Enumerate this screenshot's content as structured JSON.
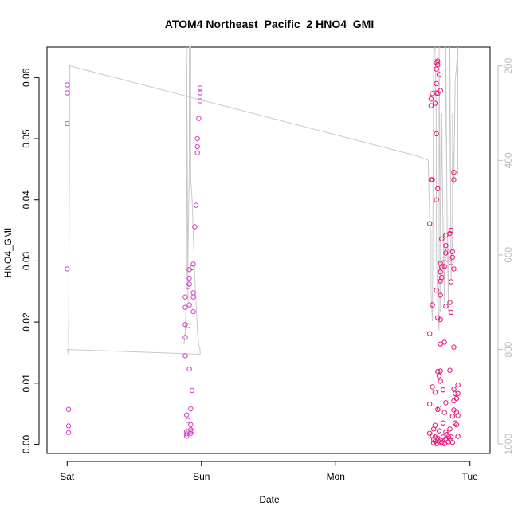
{
  "chart_data": {
    "type": "scatter",
    "title": "ATOM4 Northeast_Pacific_2 HNO4_GMI",
    "xlabel": "Date",
    "ylabel": "HNO4_GMI",
    "x_unit": "days since Sat 00:00",
    "xlim": [
      -0.15,
      3.15
    ],
    "ylim": [
      -0.0015,
      0.065
    ],
    "x_ticks": [
      {
        "value": 0,
        "label": "Sat"
      },
      {
        "value": 1,
        "label": "Sun"
      },
      {
        "value": 2,
        "label": "Mon"
      },
      {
        "value": 3,
        "label": "Tue"
      }
    ],
    "y_ticks": [
      {
        "value": 0.0,
        "label": "0.00"
      },
      {
        "value": 0.01,
        "label": "0.01"
      },
      {
        "value": 0.02,
        "label": "0.02"
      },
      {
        "value": 0.03,
        "label": "0.03"
      },
      {
        "value": 0.04,
        "label": "0.04"
      },
      {
        "value": 0.05,
        "label": "0.05"
      },
      {
        "value": 0.06,
        "label": "0.06"
      }
    ],
    "y2_label": "",
    "y2lim": [
      1020,
      160
    ],
    "y2_ticks": [
      {
        "value": 200,
        "label": "200"
      },
      {
        "value": 400,
        "label": "400"
      },
      {
        "value": 600,
        "label": "600"
      },
      {
        "value": 800,
        "label": "800"
      },
      {
        "value": 1000,
        "label": "1000"
      }
    ],
    "grid": false,
    "marker_colors": [
      "#d63fc8",
      "#e8137a"
    ],
    "pressure_line_color": "#c8c8c8",
    "series": [
      {
        "color": "#d63fc8",
        "points": [
          [
            0.0,
            0.0588
          ],
          [
            0.0,
            0.0575
          ],
          [
            0.0,
            0.0525
          ],
          [
            0.0,
            0.0287
          ],
          [
            0.01,
            0.0057
          ],
          [
            0.01,
            0.003
          ],
          [
            0.01,
            0.0019
          ],
          [
            0.88,
            0.0241
          ],
          [
            0.88,
            0.0224
          ],
          [
            0.88,
            0.0196
          ],
          [
            0.88,
            0.0175
          ],
          [
            0.88,
            0.0145
          ],
          [
            0.89,
            0.0048
          ],
          [
            0.89,
            0.0021
          ],
          [
            0.89,
            0.0017
          ],
          [
            0.89,
            0.0013
          ],
          [
            0.9,
            0.0258
          ],
          [
            0.9,
            0.0194
          ],
          [
            0.9,
            0.0039
          ],
          [
            0.9,
            0.002
          ],
          [
            0.91,
            0.0286
          ],
          [
            0.91,
            0.0272
          ],
          [
            0.91,
            0.0262
          ],
          [
            0.91,
            0.0228
          ],
          [
            0.91,
            0.0123
          ],
          [
            0.92,
            0.0058
          ],
          [
            0.92,
            0.0032
          ],
          [
            0.92,
            0.0024
          ],
          [
            0.92,
            0.0018
          ],
          [
            0.93,
            0.0289
          ],
          [
            0.93,
            0.0088
          ],
          [
            0.93,
            0.0022
          ],
          [
            0.94,
            0.0295
          ],
          [
            0.94,
            0.0248
          ],
          [
            0.94,
            0.0217
          ],
          [
            0.94,
            0.0241
          ],
          [
            0.95,
            0.0356
          ],
          [
            0.96,
            0.0391
          ],
          [
            0.97,
            0.0477
          ],
          [
            0.97,
            0.0487
          ],
          [
            0.97,
            0.05
          ],
          [
            0.98,
            0.0533
          ],
          [
            0.99,
            0.0583
          ],
          [
            0.99,
            0.0575
          ],
          [
            0.99,
            0.0562
          ]
        ]
      },
      {
        "color": "#e8137a",
        "points": [
          [
            2.7,
            0.0361
          ],
          [
            2.7,
            0.0181
          ],
          [
            2.7,
            0.0066
          ],
          [
            2.7,
            0.0018
          ],
          [
            2.71,
            0.0565
          ],
          [
            2.71,
            0.0554
          ],
          [
            2.71,
            0.0433
          ],
          [
            2.72,
            0.0574
          ],
          [
            2.72,
            0.0433
          ],
          [
            2.72,
            0.0228
          ],
          [
            2.72,
            0.0094
          ],
          [
            2.72,
            0.0014
          ],
          [
            2.73,
            0.0025
          ],
          [
            2.73,
            0.0008
          ],
          [
            2.73,
            0.0002
          ],
          [
            2.74,
            0.0558
          ],
          [
            2.74,
            0.0085
          ],
          [
            2.74,
            0.0031
          ],
          [
            2.74,
            0.0012
          ],
          [
            2.74,
            0.0005
          ],
          [
            2.75,
            0.0625
          ],
          [
            2.75,
            0.0614
          ],
          [
            2.75,
            0.059
          ],
          [
            2.75,
            0.0575
          ],
          [
            2.75,
            0.0508
          ],
          [
            2.75,
            0.04
          ],
          [
            2.75,
            0.0252
          ],
          [
            2.75,
            0.0001
          ],
          [
            2.76,
            0.0627
          ],
          [
            2.76,
            0.0621
          ],
          [
            2.76,
            0.0574
          ],
          [
            2.76,
            0.0418
          ],
          [
            2.76,
            0.0207
          ],
          [
            2.76,
            0.0119
          ],
          [
            2.76,
            0.0057
          ],
          [
            2.76,
            0.001
          ],
          [
            2.77,
            0.0605
          ],
          [
            2.77,
            0.0112
          ],
          [
            2.77,
            0.0059
          ],
          [
            2.77,
            0.0022
          ],
          [
            2.77,
            0.0004
          ],
          [
            2.78,
            0.0579
          ],
          [
            2.78,
            0.0296
          ],
          [
            2.78,
            0.0282
          ],
          [
            2.78,
            0.0267
          ],
          [
            2.78,
            0.0244
          ],
          [
            2.78,
            0.0204
          ],
          [
            2.78,
            0.0164
          ],
          [
            2.78,
            0.012
          ],
          [
            2.78,
            0.0103
          ],
          [
            2.78,
            0.0007
          ],
          [
            2.79,
            0.0336
          ],
          [
            2.79,
            0.029
          ],
          [
            2.79,
            0.0273
          ],
          [
            2.79,
            0.0003
          ],
          [
            2.8,
            0.0297
          ],
          [
            2.8,
            0.0089
          ],
          [
            2.8,
            0.0035
          ],
          [
            2.8,
            0.0012
          ],
          [
            2.8,
            0.0002
          ],
          [
            2.81,
            0.0291
          ],
          [
            2.81,
            0.0167
          ],
          [
            2.81,
            0.0052
          ],
          [
            2.81,
            0.0001
          ],
          [
            2.82,
            0.0342
          ],
          [
            2.82,
            0.0325
          ],
          [
            2.82,
            0.0313
          ],
          [
            2.82,
            0.0226
          ],
          [
            2.82,
            0.0068
          ],
          [
            2.82,
            0.002
          ],
          [
            2.82,
            0.0009
          ],
          [
            2.83,
            0.0316
          ],
          [
            2.83,
            0.0303
          ],
          [
            2.83,
            0.0016
          ],
          [
            2.84,
            0.0012
          ],
          [
            2.84,
            0.0004
          ],
          [
            2.85,
            0.0345
          ],
          [
            2.85,
            0.0232
          ],
          [
            2.85,
            0.0121
          ],
          [
            2.85,
            0.0025
          ],
          [
            2.85,
            0.0008
          ],
          [
            2.86,
            0.035
          ],
          [
            2.86,
            0.0297
          ],
          [
            2.86,
            0.0266
          ],
          [
            2.86,
            0.0216
          ],
          [
            2.86,
            0.0012
          ],
          [
            2.87,
            0.0315
          ],
          [
            2.87,
            0.0306
          ],
          [
            2.87,
            0.0046
          ],
          [
            2.87,
            0.0003
          ],
          [
            2.88,
            0.0445
          ],
          [
            2.88,
            0.0433
          ],
          [
            2.88,
            0.0287
          ],
          [
            2.88,
            0.0159
          ],
          [
            2.88,
            0.009
          ],
          [
            2.88,
            0.0071
          ],
          [
            2.88,
            0.0056
          ],
          [
            2.89,
            0.0083
          ],
          [
            2.89,
            0.0035
          ],
          [
            2.9,
            0.0075
          ],
          [
            2.9,
            0.0052
          ],
          [
            2.9,
            0.0032
          ],
          [
            2.91,
            0.0097
          ],
          [
            2.91,
            0.0083
          ],
          [
            2.91,
            0.0047
          ],
          [
            2.91,
            0.0013
          ]
        ]
      }
    ],
    "pressure_line": [
      [
        0.0,
        800
      ],
      [
        0.01,
        810
      ],
      [
        0.02,
        200
      ],
      [
        2.6,
        390
      ],
      [
        2.69,
        400
      ],
      [
        2.69,
        420
      ],
      [
        2.7,
        520
      ],
      [
        2.71,
        560
      ],
      [
        2.71,
        680
      ],
      [
        2.72,
        740
      ],
      [
        2.73,
        170
      ],
      [
        2.74,
        150
      ],
      [
        2.75,
        320
      ],
      [
        2.75,
        600
      ],
      [
        2.76,
        700
      ],
      [
        2.77,
        760
      ],
      [
        2.77,
        150
      ],
      [
        2.78,
        560
      ],
      [
        2.78,
        720
      ],
      [
        2.79,
        300
      ],
      [
        2.8,
        560
      ],
      [
        2.81,
        700
      ],
      [
        2.82,
        150
      ],
      [
        2.83,
        540
      ],
      [
        2.84,
        720
      ],
      [
        2.85,
        150
      ],
      [
        2.86,
        650
      ],
      [
        2.87,
        560
      ],
      [
        2.87,
        300
      ],
      [
        2.88,
        450
      ],
      [
        2.89,
        230
      ],
      [
        2.9,
        200
      ],
      [
        2.91,
        150
      ],
      [
        2.91,
        430
      ]
    ],
    "pressure_line_b": [
      [
        0.0,
        800
      ],
      [
        0.99,
        810
      ],
      [
        0.99,
        800
      ],
      [
        0.98,
        790
      ],
      [
        0.97,
        760
      ],
      [
        0.96,
        700
      ],
      [
        0.95,
        640
      ],
      [
        0.94,
        560
      ],
      [
        0.93,
        480
      ],
      [
        0.92,
        440
      ],
      [
        0.92,
        150
      ],
      [
        0.91,
        150
      ],
      [
        0.91,
        400
      ],
      [
        0.9,
        600
      ],
      [
        0.9,
        700
      ],
      [
        0.89,
        150
      ],
      [
        0.89,
        650
      ],
      [
        0.88,
        760
      ],
      [
        0.87,
        790
      ]
    ]
  }
}
